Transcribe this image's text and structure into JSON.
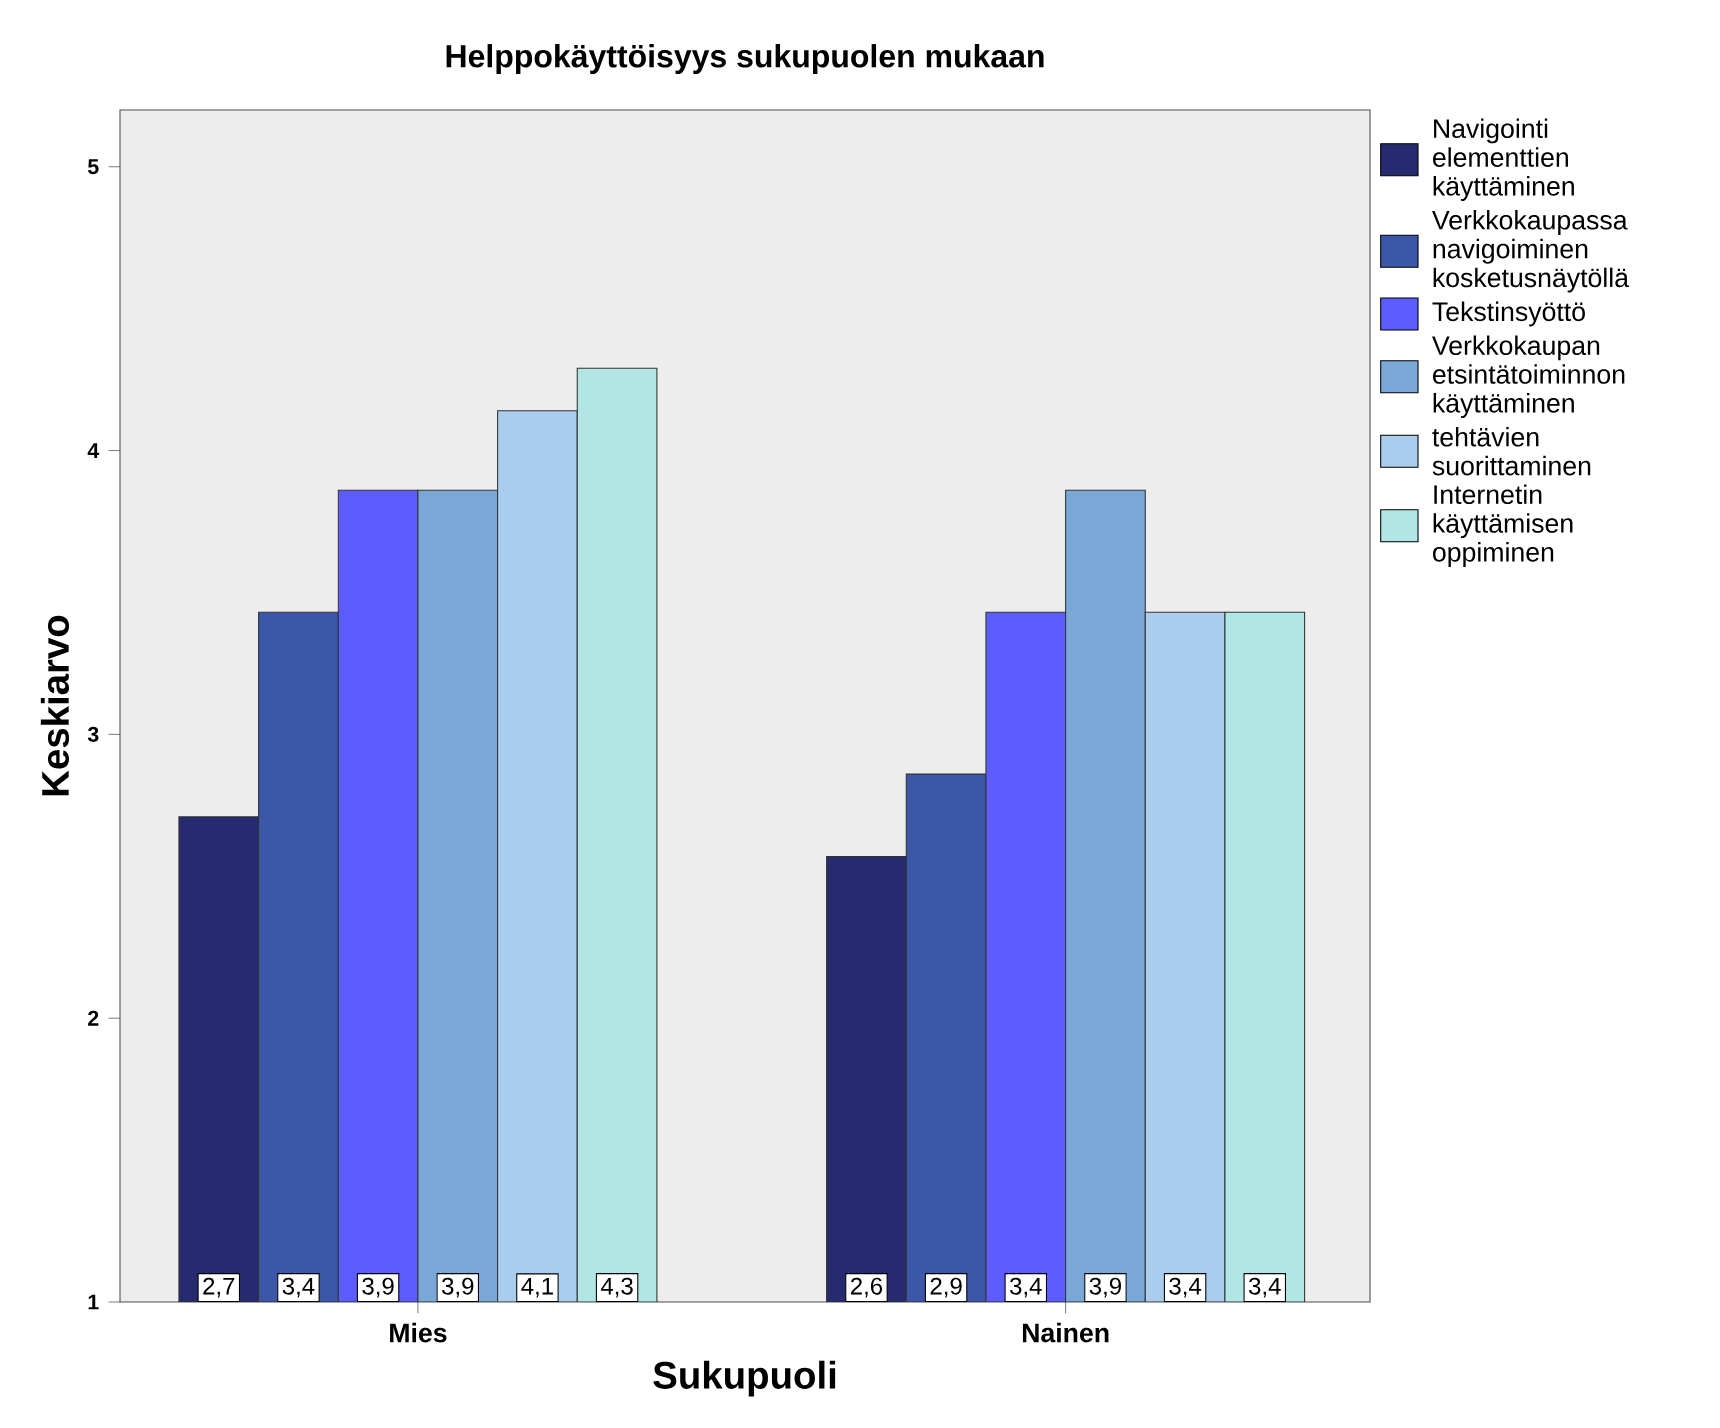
{
  "chart_data": {
    "type": "bar",
    "title": "Helppokäyttöisyys sukupuolen mukaan",
    "xlabel": "Sukupuoli",
    "ylabel": "Keskiarvo",
    "categories": [
      "Mies",
      "Nainen"
    ],
    "series": [
      {
        "name": "Navigointi elementtien käyttäminen",
        "color": "#262a6e",
        "values": [
          2.71,
          2.57
        ],
        "value_labels": [
          "2,7",
          "2,6"
        ]
      },
      {
        "name": "Verkkokaupassa navigoiminen kosketusnäytöllä",
        "color": "#3d57a8",
        "values": [
          3.43,
          2.86
        ],
        "value_labels": [
          "3,4",
          "2,9"
        ]
      },
      {
        "name": "Tekstinsyöttö",
        "color": "#5c5cff",
        "values": [
          3.86,
          3.43
        ],
        "value_labels": [
          "3,9",
          "3,4"
        ]
      },
      {
        "name": "Verkkokaupan etsintätoiminnon käyttäminen",
        "color": "#7aa8d6",
        "values": [
          3.86,
          3.86
        ],
        "value_labels": [
          "3,9",
          "3,9"
        ]
      },
      {
        "name": "tehtävien suorittaminen",
        "color": "#abcded",
        "values": [
          4.14,
          3.43
        ],
        "value_labels": [
          "4,1",
          "3,4"
        ]
      },
      {
        "name": "Internetin käyttämisen oppiminen",
        "color": "#b2e6e4",
        "values": [
          4.29,
          3.43
        ],
        "value_labels": [
          "4,3",
          "3,4"
        ]
      }
    ],
    "ylim": [
      1,
      5.2
    ],
    "yticks": [
      1,
      2,
      3,
      4,
      5
    ],
    "grid": false,
    "legend": "right"
  }
}
